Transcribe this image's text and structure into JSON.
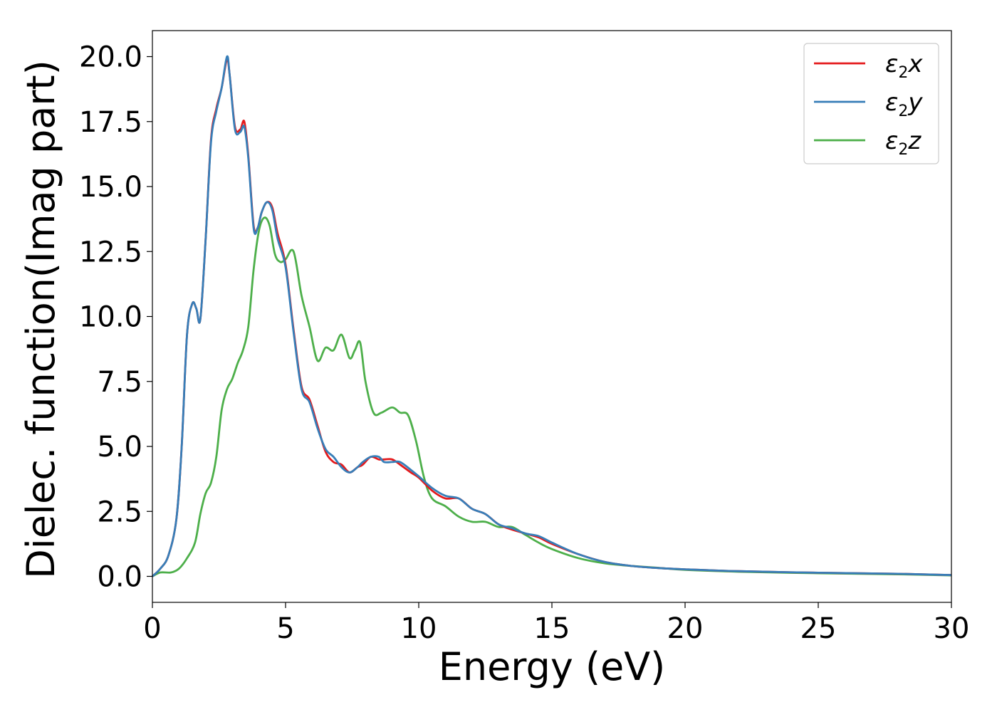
{
  "chart_data": {
    "type": "line",
    "xlabel": "Energy (eV)",
    "ylabel": "Dielec. function(Imag part)",
    "xlim": [
      0,
      30
    ],
    "ylim": [
      -1.0,
      21.0
    ],
    "xticks": [
      0,
      5,
      10,
      15,
      20,
      25,
      30
    ],
    "xtick_labels": [
      "0",
      "5",
      "10",
      "15",
      "20",
      "25",
      "30"
    ],
    "yticks": [
      0,
      2.5,
      5,
      7.5,
      10,
      12.5,
      15,
      17.5,
      20
    ],
    "ytick_labels": [
      "0.0",
      "2.5",
      "5.0",
      "7.5",
      "10.0",
      "12.5",
      "15.0",
      "17.5",
      "20.0"
    ],
    "grid": false,
    "legend_position": "top-right",
    "series": [
      {
        "name": "ε₂x",
        "legend_base": "ε",
        "legend_sub": "2",
        "legend_tail": "x",
        "color": "#e41a1c",
        "x": [
          0,
          0.3,
          0.6,
          0.9,
          1.1,
          1.3,
          1.5,
          1.65,
          1.8,
          2.0,
          2.2,
          2.4,
          2.6,
          2.8,
          2.9,
          3.1,
          3.3,
          3.45,
          3.6,
          3.8,
          3.95,
          4.1,
          4.3,
          4.5,
          4.7,
          5.0,
          5.3,
          5.6,
          5.9,
          6.2,
          6.5,
          6.8,
          7.1,
          7.4,
          7.7,
          7.9,
          8.2,
          8.5,
          8.7,
          9.0,
          9.3,
          9.7,
          10.0,
          10.5,
          11.0,
          11.5,
          12.0,
          12.5,
          13.0,
          13.5,
          14.0,
          14.5,
          15.0,
          16.0,
          17.0,
          18.0,
          19.0,
          20.0,
          22.0,
          25.0,
          28.0,
          30.0
        ],
        "values": [
          0.0,
          0.3,
          0.8,
          2.2,
          5.0,
          9.3,
          10.5,
          10.3,
          9.9,
          13.0,
          16.8,
          18.0,
          18.8,
          19.9,
          19.3,
          17.3,
          17.2,
          17.5,
          16.2,
          13.5,
          13.4,
          14.0,
          14.4,
          14.2,
          13.2,
          12.0,
          9.5,
          7.3,
          6.8,
          5.8,
          4.8,
          4.4,
          4.3,
          4.0,
          4.2,
          4.3,
          4.6,
          4.5,
          4.5,
          4.5,
          4.3,
          4.0,
          3.8,
          3.3,
          3.0,
          3.0,
          2.6,
          2.4,
          2.0,
          1.8,
          1.65,
          1.5,
          1.25,
          0.85,
          0.55,
          0.4,
          0.32,
          0.27,
          0.2,
          0.14,
          0.1,
          0.05
        ]
      },
      {
        "name": "ε₂y",
        "legend_base": "ε",
        "legend_sub": "2",
        "legend_tail": "y",
        "color": "#377eb8",
        "x": [
          0,
          0.3,
          0.6,
          0.9,
          1.1,
          1.3,
          1.5,
          1.65,
          1.8,
          2.0,
          2.2,
          2.4,
          2.6,
          2.8,
          2.9,
          3.1,
          3.3,
          3.45,
          3.6,
          3.8,
          3.95,
          4.1,
          4.3,
          4.5,
          4.7,
          5.0,
          5.3,
          5.6,
          5.9,
          6.2,
          6.5,
          6.8,
          7.1,
          7.4,
          7.7,
          7.9,
          8.2,
          8.5,
          8.7,
          9.0,
          9.3,
          9.7,
          10.0,
          10.5,
          11.0,
          11.5,
          12.0,
          12.5,
          13.0,
          13.5,
          14.0,
          14.5,
          15.0,
          16.0,
          17.0,
          18.0,
          19.0,
          20.0,
          22.0,
          25.0,
          28.0,
          30.0
        ],
        "values": [
          0.0,
          0.3,
          0.8,
          2.2,
          5.0,
          9.3,
          10.5,
          10.3,
          9.9,
          13.0,
          16.7,
          17.9,
          18.8,
          20.0,
          19.3,
          17.2,
          17.1,
          17.3,
          16.1,
          13.4,
          13.4,
          14.0,
          14.4,
          14.1,
          13.0,
          11.9,
          9.4,
          7.2,
          6.7,
          5.7,
          4.9,
          4.6,
          4.2,
          4.0,
          4.2,
          4.4,
          4.6,
          4.6,
          4.4,
          4.4,
          4.4,
          4.1,
          3.85,
          3.4,
          3.1,
          3.0,
          2.6,
          2.4,
          2.0,
          1.85,
          1.65,
          1.55,
          1.3,
          0.85,
          0.55,
          0.4,
          0.32,
          0.27,
          0.2,
          0.14,
          0.1,
          0.05
        ]
      },
      {
        "name": "ε₂z",
        "legend_base": "ε",
        "legend_sub": "2",
        "legend_tail": "z",
        "color": "#4daf4a",
        "x": [
          0,
          0.3,
          0.7,
          1.0,
          1.3,
          1.6,
          1.8,
          2.0,
          2.2,
          2.4,
          2.6,
          2.8,
          3.0,
          3.2,
          3.4,
          3.6,
          3.8,
          4.0,
          4.2,
          4.4,
          4.6,
          4.8,
          5.0,
          5.3,
          5.6,
          5.9,
          6.2,
          6.5,
          6.8,
          7.1,
          7.4,
          7.6,
          7.8,
          8.0,
          8.3,
          8.6,
          9.0,
          9.3,
          9.6,
          9.9,
          10.2,
          10.5,
          11.0,
          11.5,
          12.0,
          12.5,
          13.0,
          13.5,
          14.0,
          14.5,
          15.0,
          16.0,
          17.0,
          18.0,
          19.0,
          20.0,
          22.0,
          25.0,
          28.0,
          30.0
        ],
        "values": [
          0.0,
          0.15,
          0.15,
          0.3,
          0.7,
          1.3,
          2.4,
          3.2,
          3.6,
          4.6,
          6.4,
          7.2,
          7.6,
          8.2,
          8.7,
          9.6,
          11.8,
          13.3,
          13.8,
          13.5,
          12.4,
          12.1,
          12.2,
          12.5,
          10.8,
          9.6,
          8.3,
          8.8,
          8.7,
          9.3,
          8.4,
          8.7,
          9.0,
          7.5,
          6.3,
          6.3,
          6.5,
          6.3,
          6.2,
          5.2,
          3.8,
          3.0,
          2.7,
          2.3,
          2.1,
          2.1,
          1.9,
          1.9,
          1.6,
          1.3,
          1.05,
          0.7,
          0.5,
          0.4,
          0.33,
          0.25,
          0.18,
          0.12,
          0.08,
          0.04
        ]
      }
    ]
  }
}
